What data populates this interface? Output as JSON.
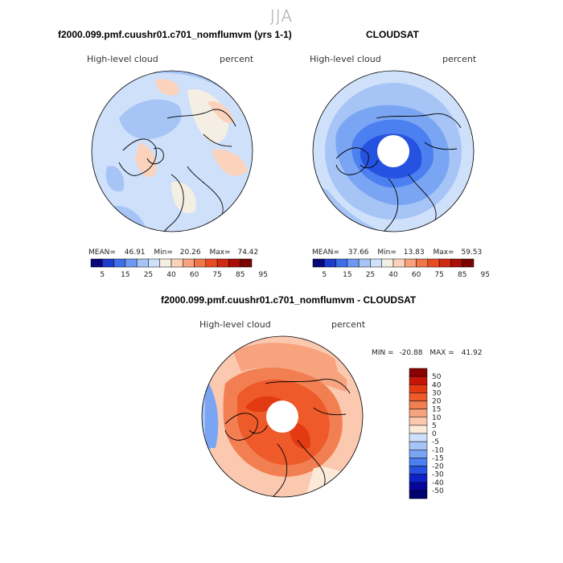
{
  "page_title": "JJA",
  "panels": [
    {
      "title": "f2000.099.pmf.cuushr01.c701_nomflumvm (yrs 1-1)",
      "variable": "High-level cloud",
      "units": "percent",
      "stats": {
        "mean_label": "MEAN=",
        "mean": "46.91",
        "min_label": "Min=",
        "min": "20.26",
        "max_label": "Max=",
        "max": "74.42"
      }
    },
    {
      "title": "CLOUDSAT",
      "variable": "High-level cloud",
      "units": "percent",
      "stats": {
        "mean_label": "MEAN=",
        "mean": "37.66",
        "min_label": "Min=",
        "min": "13.83",
        "max_label": "Max=",
        "max": "59.53"
      }
    },
    {
      "title": "f2000.099.pmf.cuushr01.c701_nomflumvm - CLOUDSAT",
      "variable": "High-level cloud",
      "units": "percent",
      "stats": {
        "min_label": "MIN =",
        "min": "-20.88",
        "max_label": "MAX =",
        "max": "41.92"
      }
    }
  ],
  "colorbar_abs": {
    "labels": [
      "5",
      "15",
      "25",
      "40",
      "60",
      "75",
      "85",
      "95"
    ],
    "colors": [
      "#08087a",
      "#1c3ccc",
      "#3f6fe8",
      "#6e98f2",
      "#a6c4f5",
      "#cfe0fb",
      "#f4efe2",
      "#fbd2bc",
      "#f6a37e",
      "#f07848",
      "#e84d22",
      "#cf2b10",
      "#a81006",
      "#7a0402"
    ]
  },
  "colorbar_diff": {
    "labels": [
      "50",
      "40",
      "30",
      "20",
      "15",
      "10",
      "5",
      "0",
      "-5",
      "-10",
      "-15",
      "-20",
      "-30",
      "-40",
      "-50"
    ],
    "colors": [
      "#8a0202",
      "#c41508",
      "#e43a14",
      "#ee5a2a",
      "#f27f52",
      "#f6a37e",
      "#fbc8b0",
      "#fbe9da",
      "#cfe0fb",
      "#a6c4f5",
      "#7aa5f2",
      "#4c7ff0",
      "#2552e0",
      "#0e22c8",
      "#06069a",
      "#000070"
    ]
  },
  "chart_data": [
    {
      "type": "heatmap",
      "projection": "north polar stereographic",
      "title": "f2000.099.pmf.cuushr01.c701_nomflumvm (yrs 1-1)",
      "variable": "High-level cloud",
      "units": "percent",
      "mean": 46.91,
      "min": 20.26,
      "max": 74.42,
      "contour_levels": [
        5,
        15,
        25,
        40,
        60,
        75,
        85,
        95
      ]
    },
    {
      "type": "heatmap",
      "projection": "north polar stereographic",
      "title": "CLOUDSAT",
      "variable": "High-level cloud",
      "units": "percent",
      "mean": 37.66,
      "min": 13.83,
      "max": 59.53,
      "contour_levels": [
        5,
        15,
        25,
        40,
        60,
        75,
        85,
        95
      ],
      "missing_region": "polar cap (no data)"
    },
    {
      "type": "heatmap",
      "projection": "north polar stereographic",
      "title": "f2000.099.pmf.cuushr01.c701_nomflumvm - CLOUDSAT",
      "variable": "High-level cloud",
      "units": "percent",
      "min": -20.88,
      "max": 41.92,
      "contour_levels": [
        -50,
        -40,
        -30,
        -20,
        -15,
        -10,
        -5,
        0,
        5,
        10,
        15,
        20,
        30,
        40,
        50
      ],
      "missing_region": "polar cap (no data)"
    }
  ]
}
